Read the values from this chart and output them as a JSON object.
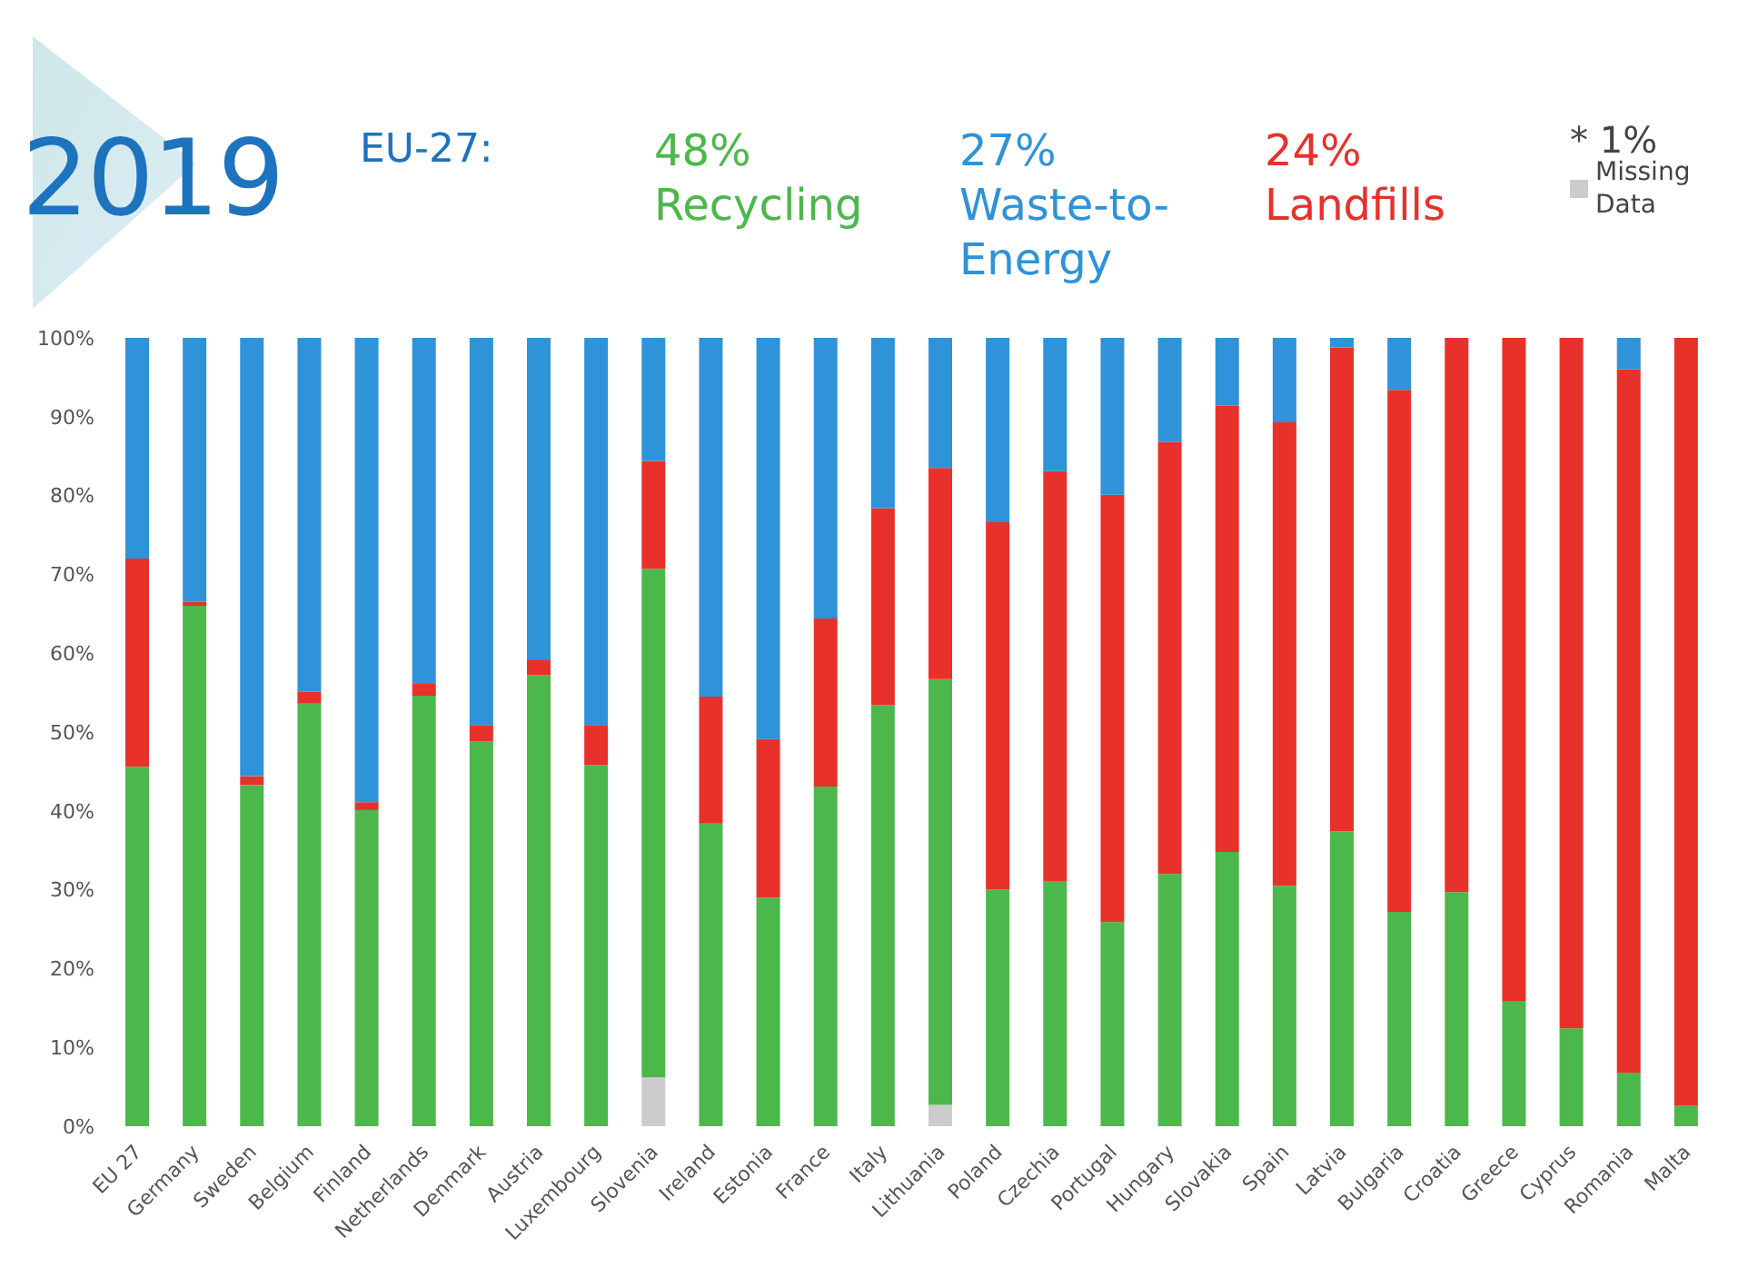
{
  "chart_data": {
    "type": "bar",
    "title": "2019",
    "subtitle": "EU-27:",
    "annotations": [
      "48%",
      "27%",
      "24%",
      "* 1%"
    ],
    "categories": [
      "EU 27",
      "Germany",
      "Sweden",
      "Belgium",
      "Finland",
      "Netherlands",
      "Denmark",
      "Austria",
      "Luxembourg",
      "Slovenia",
      "Ireland",
      "Estonia",
      "France",
      "Italy",
      "Lithuania",
      "Poland",
      "Czechia",
      "Portugal",
      "Hungary",
      "Slovakia",
      "Spain",
      "Latvia",
      "Bulgaria",
      "Croatia",
      "Greece",
      "Cyprus",
      "Romania",
      "Malta"
    ],
    "stacked": true,
    "legend": "top",
    "grid": false,
    "ylim": [
      0,
      100
    ],
    "yticks": [
      {
        "value": 0,
        "label": "0%"
      },
      {
        "value": 10,
        "label": "10%"
      },
      {
        "value": 20,
        "label": "20%"
      },
      {
        "value": 30,
        "label": "30%"
      },
      {
        "value": 40,
        "label": "40%"
      },
      {
        "value": 50,
        "label": "50%"
      },
      {
        "value": 60,
        "label": "60%"
      },
      {
        "value": 70,
        "label": "70%"
      },
      {
        "value": 80,
        "label": "80%"
      },
      {
        "value": 90,
        "label": "90%"
      },
      {
        "value": 100,
        "label": "100%"
      }
    ],
    "series": [
      {
        "name": "Missing Data",
        "color": "#cccccc",
        "values": [
          0,
          0,
          0,
          0,
          0,
          0,
          0,
          0,
          0,
          6.2,
          0,
          0,
          0,
          0,
          2.7,
          0,
          0,
          0,
          0,
          0,
          0,
          0,
          0,
          0,
          0,
          0,
          0,
          0
        ]
      },
      {
        "name": "Recycling",
        "color": "#4cb84c",
        "values": [
          45.6,
          66.0,
          43.3,
          53.6,
          40.1,
          54.6,
          48.8,
          57.2,
          45.8,
          64.5,
          38.4,
          29.0,
          43.1,
          53.4,
          54.0,
          30.0,
          31.1,
          25.9,
          32.0,
          34.8,
          30.5,
          37.4,
          27.2,
          29.7,
          15.8,
          12.4,
          6.8,
          2.6
        ]
      },
      {
        "name": "Landfills",
        "color": "#e8312b",
        "values": [
          26.4,
          0.5,
          1.1,
          1.5,
          1.0,
          1.5,
          2.1,
          2.0,
          5.1,
          13.7,
          16.1,
          20.1,
          21.3,
          25.0,
          26.8,
          46.6,
          52.0,
          54.2,
          54.8,
          56.6,
          58.8,
          61.4,
          66.2,
          70.3,
          84.2,
          87.6,
          89.2,
          97.4
        ]
      },
      {
        "name": "Waste-to-Energy",
        "color": "#2e93d8",
        "values": [
          28.0,
          33.5,
          55.6,
          44.9,
          58.9,
          43.9,
          49.1,
          40.8,
          49.1,
          15.6,
          45.5,
          50.9,
          35.6,
          21.6,
          16.5,
          23.4,
          16.9,
          19.9,
          13.2,
          8.6,
          10.7,
          1.2,
          6.6,
          0,
          0,
          0,
          4.0,
          0
        ]
      }
    ]
  }
}
